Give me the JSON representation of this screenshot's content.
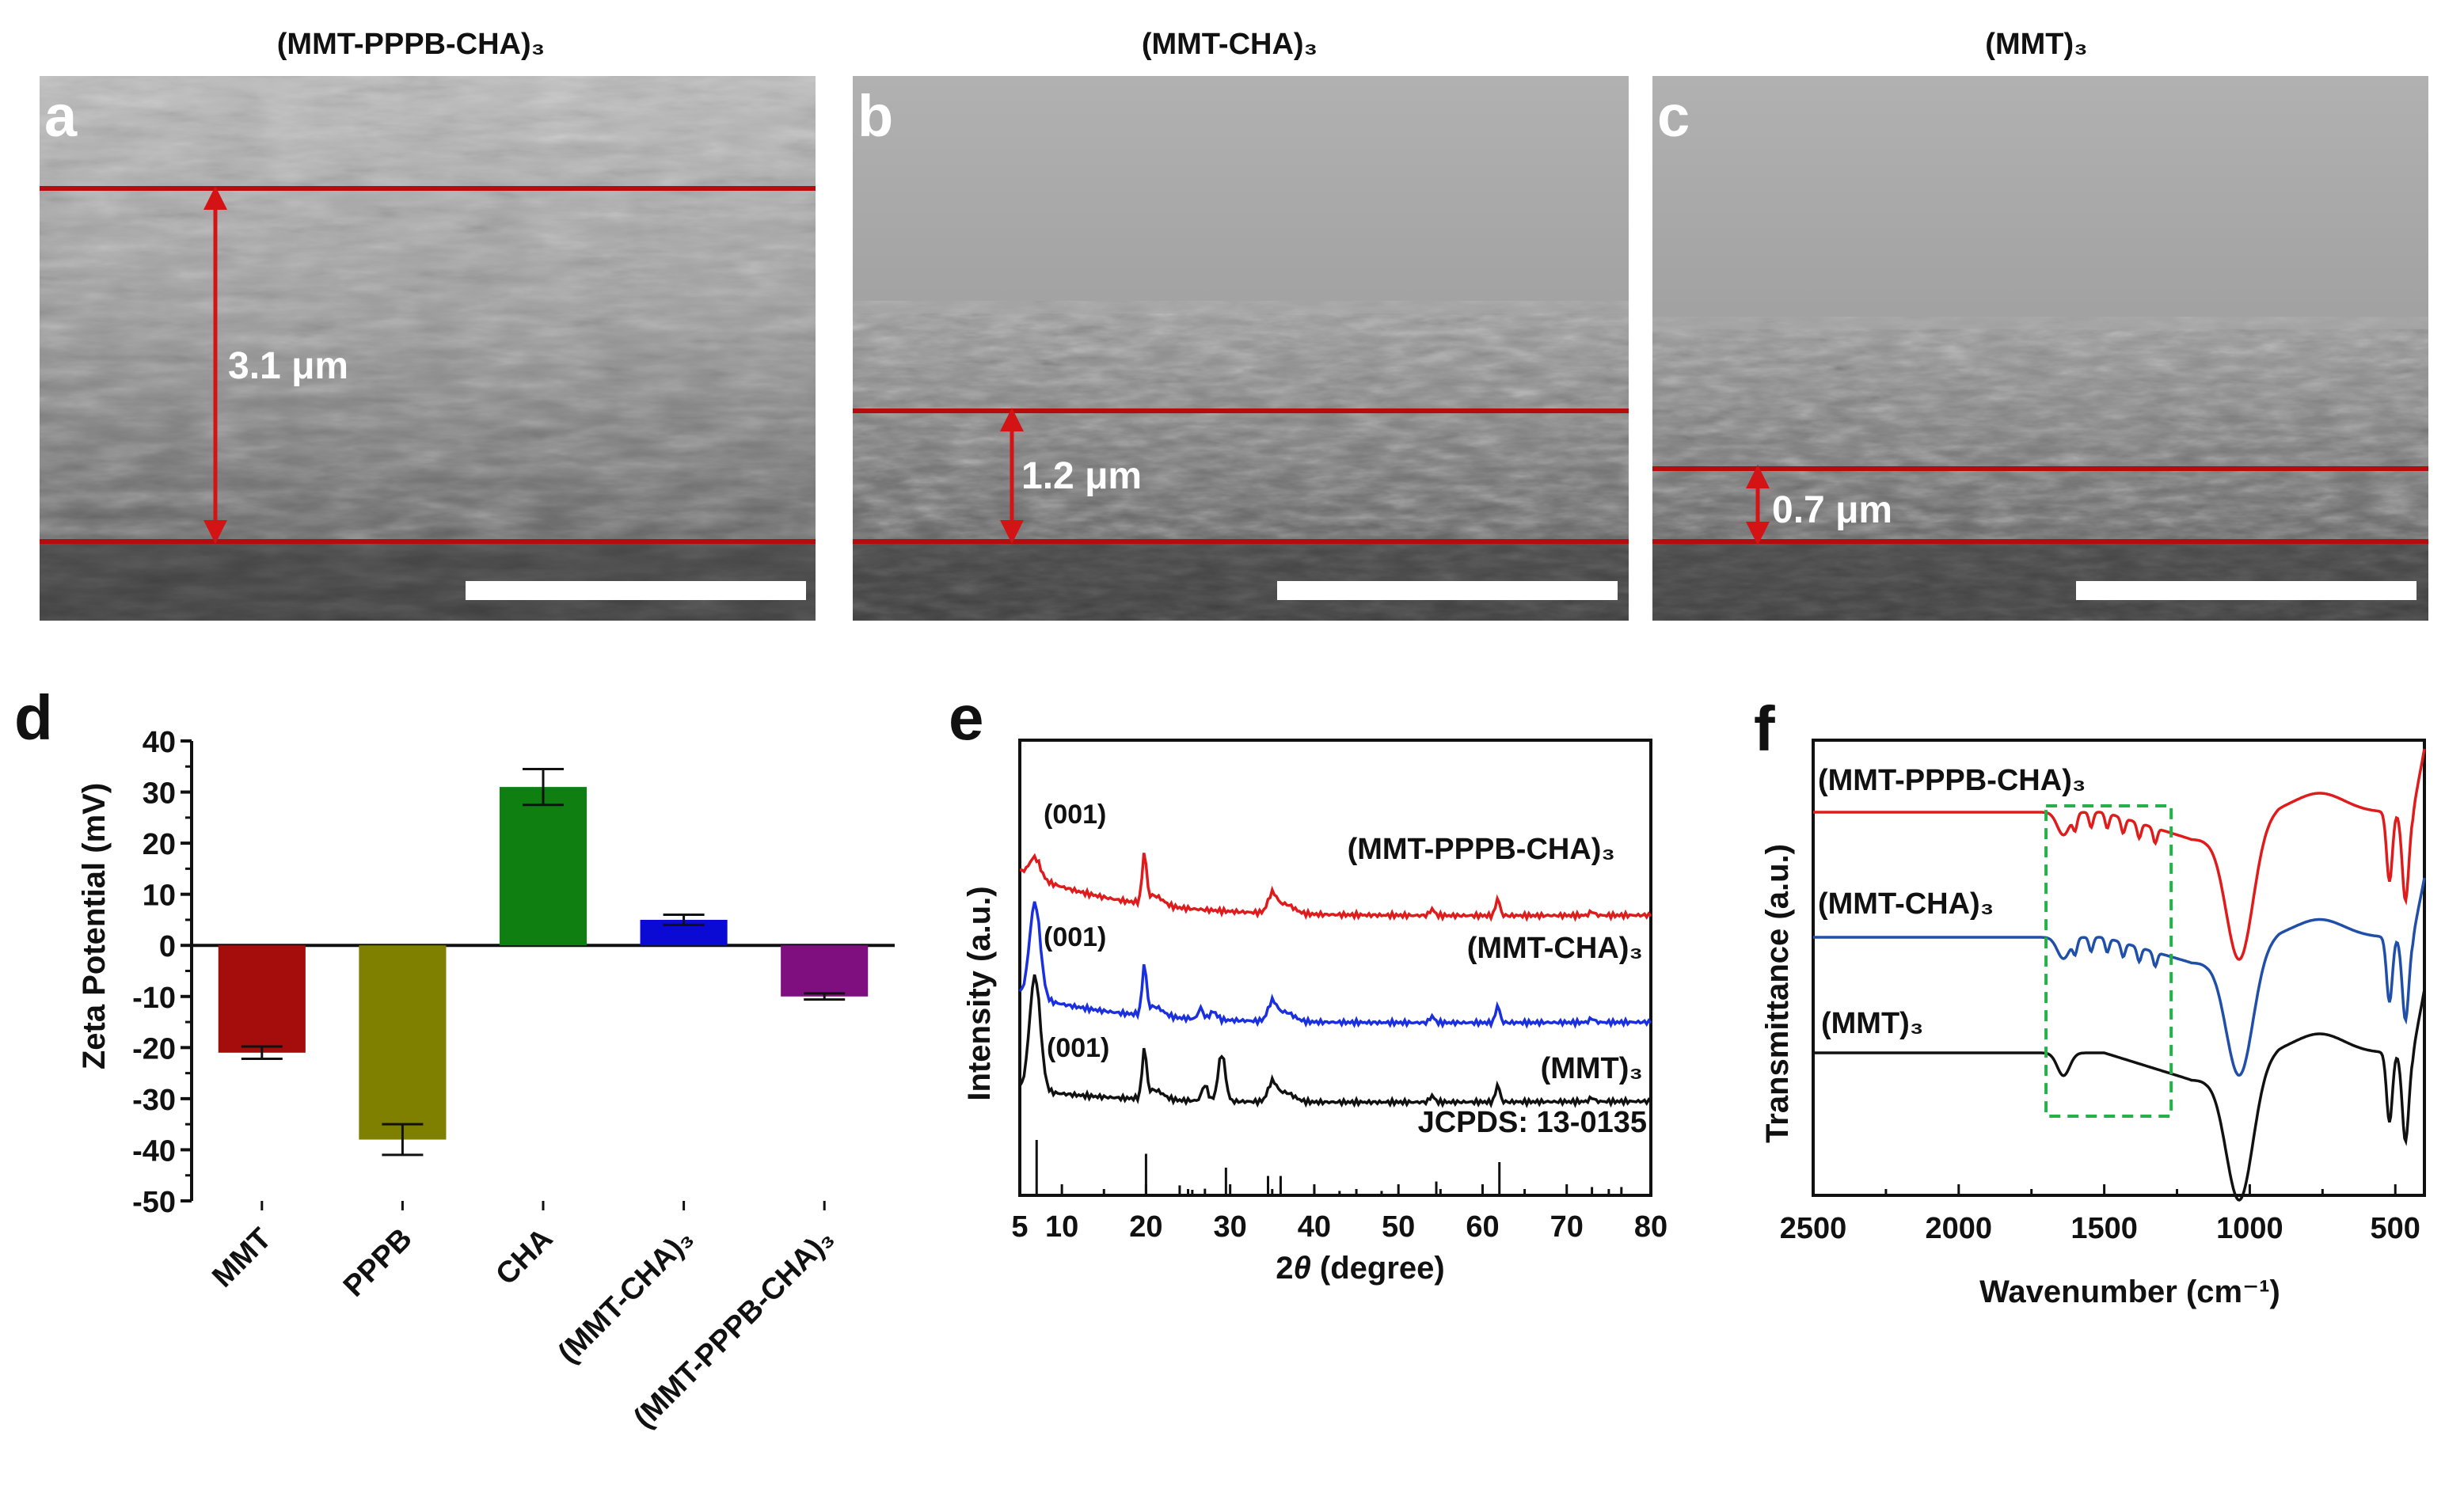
{
  "sem_panels": [
    {
      "letter": "a",
      "title": "(MMT-PPPB-CHA)₃",
      "thickness": "3.1 μm"
    },
    {
      "letter": "b",
      "title": "(MMT-CHA)₃",
      "thickness": "1.2 μm"
    },
    {
      "letter": "c",
      "title": "(MMT)₃",
      "thickness": "0.7 μm"
    }
  ],
  "colors": {
    "red": "#e01b1b",
    "blue": "#1a2fe0",
    "black": "#111111",
    "guide": "#b50d0d",
    "dash": "#25b04a"
  },
  "chart_data": [
    {
      "panel": "d",
      "type": "bar",
      "ylabel": "Zeta Potential (mV)",
      "ylim": [
        -50,
        40
      ],
      "yticks": [
        "40",
        "30",
        "20",
        "10",
        "0",
        "-10",
        "-20",
        "-30",
        "-40",
        "-50"
      ],
      "categories": [
        "MMT",
        "PPPB",
        "CHA",
        "(MMT-CHA)₃",
        "(MMT-PPPB-CHA)₃"
      ],
      "values": [
        -21,
        -38,
        31,
        5,
        -10
      ],
      "errors": [
        1.2,
        3,
        3.5,
        1.0,
        0.6
      ],
      "bar_colors": [
        "#a50d0d",
        "#7f7f00",
        "#0f7f12",
        "#0a0ad4",
        "#7f0f7f"
      ]
    },
    {
      "panel": "e",
      "type": "line",
      "xlabel": "2θ (degree)",
      "ylabel": "Intensity (a.u.)",
      "xlim": [
        5,
        80
      ],
      "xticks": [
        "5",
        "10",
        "20",
        "30",
        "40",
        "50",
        "60",
        "70",
        "80"
      ],
      "peak_label": "(001)",
      "reference_label": "JCPDS: 13-0135",
      "reference_lines": [
        7,
        20,
        24,
        25.5,
        27,
        29.5,
        34.5,
        36,
        40,
        43,
        48,
        54.5,
        62,
        73,
        76.5
      ],
      "reference_heights": [
        1.0,
        0.75,
        0.18,
        0.1,
        0.12,
        0.5,
        0.35,
        0.35,
        0.12,
        0.08,
        0.08,
        0.25,
        0.6,
        0.15,
        0.15
      ],
      "series": [
        {
          "name": "(MMT-PPPB-CHA)₃",
          "color": "#e01b1b"
        },
        {
          "name": "(MMT-CHA)₃",
          "color": "#1a2fe0"
        },
        {
          "name": "(MMT)₃",
          "color": "#111111"
        }
      ]
    },
    {
      "panel": "f",
      "type": "line",
      "xlabel": "Wavenumber (cm⁻¹)",
      "ylabel": "Transmittance (a.u.)",
      "xlim": [
        2500,
        400
      ],
      "xticks": [
        "2500",
        "2000",
        "1500",
        "1000",
        "500"
      ],
      "series": [
        {
          "name": "(MMT-PPPB-CHA)₃",
          "color": "#e01b1b"
        },
        {
          "name": "(MMT-CHA)₃",
          "color": "#1f4fa8"
        },
        {
          "name": "(MMT)₃",
          "color": "#111111"
        }
      ],
      "highlight_range": [
        1700,
        1270
      ]
    }
  ]
}
